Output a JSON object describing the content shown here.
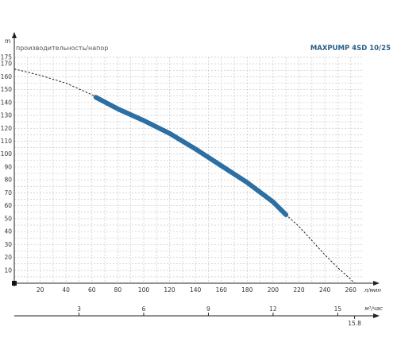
{
  "chart_data": {
    "type": "line",
    "title": "MAXPUMP 4SD 10/25",
    "ylabel": "производительность/напор",
    "y_unit": "m",
    "x_unit": "л/мин",
    "x2_unit": "м³/час",
    "xlim": [
      0,
      270
    ],
    "ylim": [
      0,
      175
    ],
    "x_ticks": [
      20,
      40,
      60,
      80,
      100,
      120,
      140,
      160,
      180,
      200,
      220,
      240,
      260
    ],
    "y_ticks": [
      10,
      20,
      30,
      40,
      50,
      60,
      70,
      80,
      90,
      100,
      110,
      120,
      130,
      140,
      150,
      160,
      170,
      175
    ],
    "x2_ticks": [
      {
        "label": "3",
        "lpm": 50
      },
      {
        "label": "6",
        "lpm": 100
      },
      {
        "label": "9",
        "lpm": 150
      },
      {
        "label": "12",
        "lpm": 200
      },
      {
        "label": "15",
        "lpm": 250
      },
      {
        "label": "15.8",
        "lpm": 263
      }
    ],
    "grid": true,
    "series": [
      {
        "role": "extrapolated",
        "style": "dashed",
        "color": "#222222",
        "x": [
          0,
          20,
          40,
          60,
          80,
          100,
          120,
          140,
          160,
          180,
          200,
          210,
          220,
          230,
          240,
          250,
          260,
          263
        ],
        "y": [
          166,
          161,
          155,
          146,
          135,
          126,
          116,
          104,
          91,
          78,
          63,
          53,
          44,
          33,
          22,
          12,
          3,
          0
        ]
      },
      {
        "role": "operating-range",
        "style": "solid",
        "color": "#2d6fa2",
        "x": [
          63,
          80,
          100,
          120,
          140,
          160,
          180,
          200,
          210
        ],
        "y": [
          144,
          135,
          126,
          116,
          104,
          91,
          78,
          63,
          53
        ]
      }
    ]
  }
}
